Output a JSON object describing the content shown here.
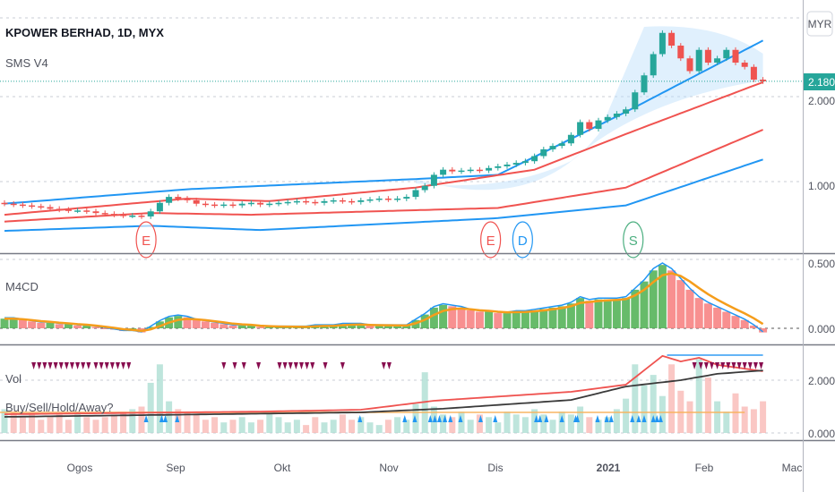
{
  "header": {
    "symbol_title": "KPOWER BERHAD, 1D, MYX",
    "indicator": "SMS V4"
  },
  "currency_button": "MYR",
  "last_price": "2.180",
  "panels": {
    "macd_label": "M4CD",
    "vol_label": "Vol",
    "signal_label": "Buy/Sell/Hold/Away?"
  },
  "colors": {
    "up": "#26a69a",
    "down": "#ef5350",
    "band_blue": "#2196f3",
    "band_red": "#f05350",
    "macd_signal": "#f59d1b",
    "sell": "#880e4f",
    "buy": "#2196f3"
  },
  "chart_data": {
    "type": "candlestick",
    "title": "KPOWER BERHAD, 1D, MYX",
    "price_axis": {
      "ticks": [
        "1.000",
        "2.000"
      ],
      "scale": "linear"
    },
    "macd_axis": {
      "ticks": [
        "0.500",
        "0.000"
      ]
    },
    "vol_axis": {
      "ticks": [
        "2.000",
        "0.000"
      ]
    },
    "time_axis": {
      "ticks": [
        "Ogos",
        "Sep",
        "Okt",
        "Nov",
        "Dis",
        "2021",
        "Feb",
        "Mac"
      ]
    },
    "closes": [
      0.74,
      0.73,
      0.72,
      0.71,
      0.7,
      0.68,
      0.67,
      0.66,
      0.66,
      0.65,
      0.63,
      0.62,
      0.61,
      0.6,
      0.6,
      0.59,
      0.65,
      0.75,
      0.82,
      0.8,
      0.78,
      0.74,
      0.73,
      0.72,
      0.73,
      0.72,
      0.74,
      0.75,
      0.73,
      0.74,
      0.75,
      0.76,
      0.77,
      0.76,
      0.75,
      0.77,
      0.78,
      0.77,
      0.76,
      0.78,
      0.79,
      0.8,
      0.79,
      0.8,
      0.82,
      0.9,
      0.95,
      1.08,
      1.14,
      1.12,
      1.13,
      1.14,
      1.13,
      1.16,
      1.18,
      1.2,
      1.22,
      1.24,
      1.3,
      1.38,
      1.42,
      1.45,
      1.55,
      1.7,
      1.62,
      1.72,
      1.76,
      1.8,
      1.85,
      2.05,
      2.25,
      2.5,
      2.75,
      2.6,
      2.45,
      2.3,
      2.55,
      2.4,
      2.45,
      2.55,
      2.4,
      2.35,
      2.2,
      2.18
    ],
    "bands": [
      {
        "name": "upper-blue",
        "color": "#2196f3",
        "points": [
          [
            0,
            0.74
          ],
          [
            20,
            0.91
          ],
          [
            45,
            1.03
          ],
          [
            54,
            1.08
          ],
          [
            68,
            1.82
          ],
          [
            83,
            2.66
          ]
        ]
      },
      {
        "name": "middle-red",
        "color": "#f05350",
        "points": [
          [
            0,
            0.61
          ],
          [
            20,
            0.8
          ],
          [
            29,
            0.77
          ],
          [
            45,
            0.93
          ],
          [
            58,
            1.14
          ],
          [
            68,
            1.56
          ],
          [
            83,
            2.17
          ]
        ]
      },
      {
        "name": "lower-red",
        "color": "#f05350",
        "points": [
          [
            0,
            0.53
          ],
          [
            16,
            0.63
          ],
          [
            27,
            0.61
          ],
          [
            54,
            0.69
          ],
          [
            68,
            0.93
          ],
          [
            83,
            1.61
          ]
        ]
      },
      {
        "name": "lower-blue",
        "color": "#2196f3",
        "points": [
          [
            0,
            0.42
          ],
          [
            16,
            0.48
          ],
          [
            28,
            0.43
          ],
          [
            54,
            0.57
          ],
          [
            68,
            0.72
          ],
          [
            83,
            1.26
          ]
        ]
      }
    ],
    "event_markers": [
      {
        "label": "E",
        "bar": 15.5,
        "color": "#f05350"
      },
      {
        "label": "E",
        "bar": 53.2,
        "color": "#f05350"
      },
      {
        "label": "D",
        "bar": 56.7,
        "color": "#2196f3"
      },
      {
        "label": "S",
        "bar": 68.8,
        "color": "#4caf80"
      }
    ],
    "macd_hist": [
      0.07,
      0.07,
      0.06,
      0.05,
      0.04,
      0.04,
      0.03,
      0.03,
      0.02,
      0.02,
      0.01,
      0,
      -0.01,
      -0.02,
      -0.02,
      -0.03,
      0.01,
      0.05,
      0.08,
      0.09,
      0.08,
      0.06,
      0.05,
      0.04,
      0.03,
      0.02,
      0.02,
      0.02,
      0.01,
      0.01,
      0.01,
      0.01,
      0.01,
      0.01,
      0.02,
      0.02,
      0.02,
      0.03,
      0.03,
      0.03,
      0.02,
      0.02,
      0.02,
      0.02,
      0.02,
      0.06,
      0.1,
      0.15,
      0.17,
      0.16,
      0.15,
      0.13,
      0.12,
      0.12,
      0.11,
      0.11,
      0.12,
      0.12,
      0.13,
      0.14,
      0.15,
      0.16,
      0.18,
      0.22,
      0.2,
      0.21,
      0.21,
      0.21,
      0.22,
      0.28,
      0.34,
      0.42,
      0.46,
      0.42,
      0.35,
      0.28,
      0.22,
      0.18,
      0.15,
      0.12,
      0.09,
      0.06,
      0.02,
      -0.03
    ],
    "volume": [
      0.9,
      0.8,
      0.6,
      0.7,
      0.5,
      0.6,
      0.7,
      0.5,
      0.8,
      0.6,
      0.5,
      0.6,
      0.7,
      0.8,
      0.9,
      1.0,
      1.9,
      2.6,
      1.2,
      0.9,
      0.8,
      0.7,
      0.5,
      0.6,
      0.4,
      0.5,
      0.6,
      0.4,
      0.5,
      0.7,
      0.6,
      0.4,
      0.5,
      0.3,
      0.6,
      0.4,
      0.5,
      0.7,
      0.5,
      0.6,
      0.4,
      0.3,
      0.5,
      0.6,
      0.5,
      1.1,
      2.3,
      1.0,
      0.7,
      0.6,
      0.8,
      0.5,
      0.7,
      0.6,
      0.4,
      0.8,
      0.7,
      0.6,
      0.9,
      0.7,
      0.5,
      0.8,
      0.7,
      1.0,
      0.6,
      0.5,
      0.6,
      0.9,
      1.3,
      2.6,
      1.8,
      2.2,
      1.4,
      2.6,
      1.6,
      1.2,
      2.8,
      2.1,
      1.2,
      0.8,
      1.5,
      1.0,
      0.9,
      1.2
    ],
    "vol_lines": [
      {
        "name": "fast-line",
        "color": "#ef5350",
        "points": [
          [
            0,
            0.71
          ],
          [
            28,
            0.81
          ],
          [
            39,
            0.88
          ],
          [
            47,
            1.22
          ],
          [
            62,
            1.56
          ],
          [
            68,
            1.83
          ],
          [
            72,
            2.92
          ],
          [
            74,
            2.71
          ],
          [
            76,
            2.85
          ],
          [
            78,
            2.58
          ],
          [
            83,
            2.34
          ]
        ]
      },
      {
        "name": "slow-line",
        "color": "#3a3a3a",
        "points": [
          [
            0,
            0.61
          ],
          [
            39,
            0.78
          ],
          [
            48,
            0.92
          ],
          [
            62,
            1.25
          ],
          [
            68,
            1.76
          ],
          [
            74,
            2.0
          ],
          [
            78,
            2.24
          ],
          [
            83,
            2.37
          ]
        ]
      }
    ],
    "vol_level": 0.78,
    "sell_signals": [
      3.2,
      3.8,
      4.4,
      5.0,
      5.6,
      6.2,
      6.8,
      7.4,
      8.0,
      8.6,
      9.2,
      10.0,
      10.6,
      11.2,
      11.8,
      12.4,
      13.0,
      13.6,
      24,
      25.2,
      26.2,
      27.8,
      30.1,
      30.7,
      31.3,
      31.9,
      32.5,
      33.1,
      33.7,
      35.1,
      37.0,
      41.5,
      42.1,
      75.5,
      76.2,
      76.8,
      77.4,
      78,
      78.6,
      79.2,
      79.8,
      80.4,
      81,
      81.6,
      82.2,
      82.8
    ],
    "buy_signals": [
      15.5,
      17.2,
      17.6,
      18.9,
      38.9,
      43.8,
      44.9,
      46.6,
      47.1,
      47.6,
      48.2,
      48.8,
      49.9,
      52.1,
      53.7,
      58.2,
      58.6,
      59.3,
      61,
      62.5,
      62.7,
      64.9,
      65.9,
      66.4,
      68.7,
      69.4,
      70,
      71,
      71.4,
      71.8
    ]
  }
}
